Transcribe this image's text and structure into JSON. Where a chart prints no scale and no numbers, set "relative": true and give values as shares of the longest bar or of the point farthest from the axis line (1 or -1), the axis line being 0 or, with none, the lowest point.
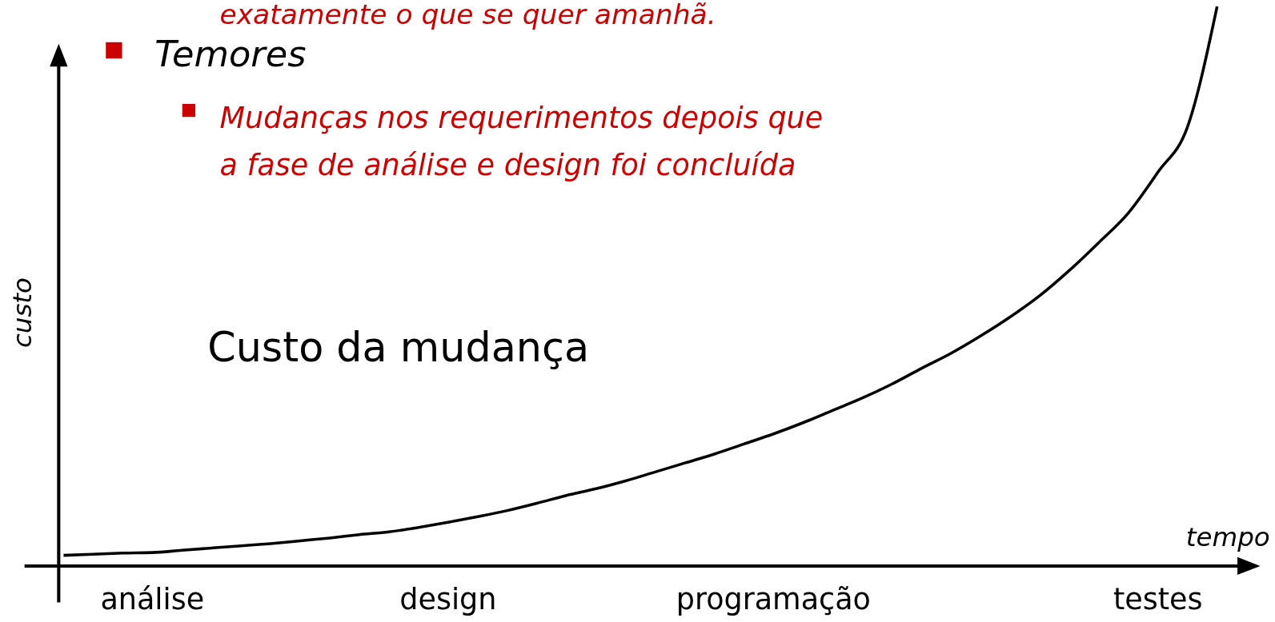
{
  "chart_data": {
    "type": "line",
    "relative": true,
    "xlabel": "tempo",
    "ylabel": "custo",
    "categories": [
      null,
      null,
      null,
      "análise",
      null,
      null,
      null,
      null,
      null,
      null,
      null,
      null,
      null,
      "design",
      null,
      null,
      null,
      null,
      null,
      null,
      null,
      null,
      null,
      null,
      "programação",
      null,
      null,
      null,
      null,
      null,
      null,
      null,
      null,
      null,
      null,
      null,
      null,
      "testes",
      null,
      null
    ],
    "series": [
      {
        "color": "#000000",
        "values": [
          0.019,
          0.021,
          0.023,
          0.024,
          0.028,
          0.032,
          0.036,
          0.04,
          0.045,
          0.05,
          0.056,
          0.061,
          0.069,
          0.078,
          0.088,
          0.099,
          0.112,
          0.126,
          0.138,
          0.152,
          0.168,
          0.184,
          0.2,
          0.218,
          0.236,
          0.256,
          0.278,
          0.3,
          0.325,
          0.353,
          0.38,
          0.411,
          0.445,
          0.483,
          0.528,
          0.578,
          0.631,
          0.704,
          0.785,
          1.0
        ]
      }
    ],
    "annotations": [
      "exatamente o que se quer amanhã.",
      "Temores",
      "Mudanças nos requerimentos depois que\na fase de análise e design foi concluída",
      "Custo da mudança"
    ],
    "marker": "none",
    "line_style": "solid"
  }
}
